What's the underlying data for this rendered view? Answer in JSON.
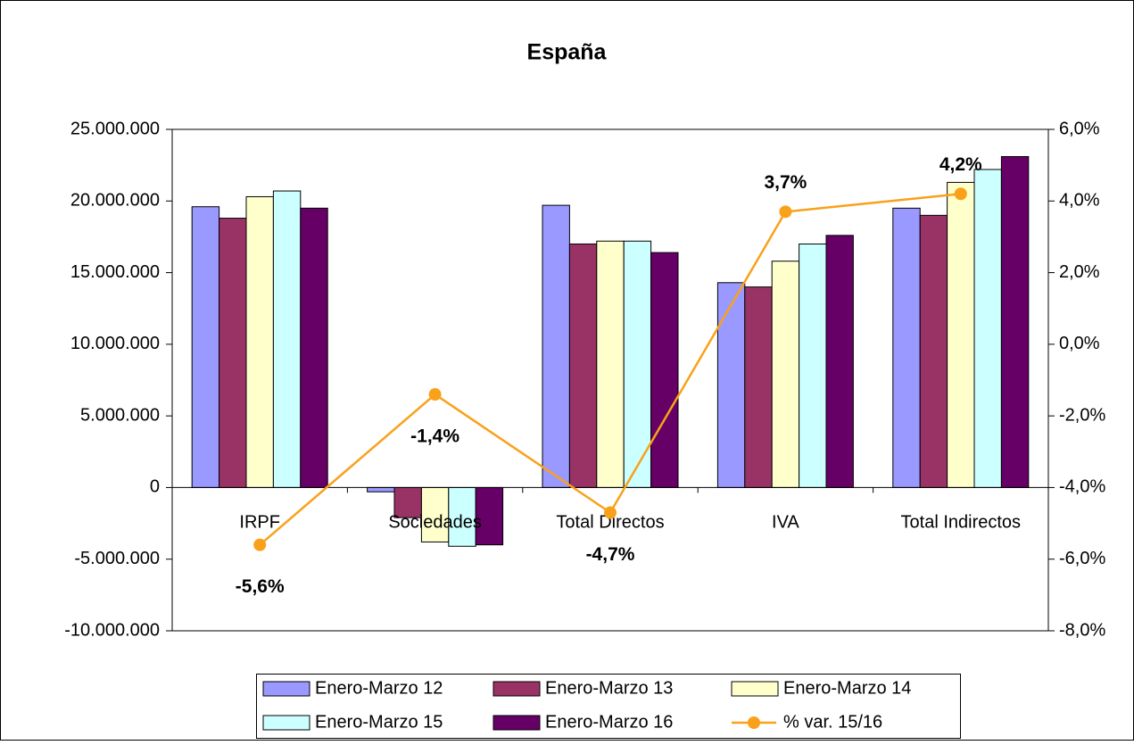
{
  "chart_data": {
    "type": "bar",
    "title": "España",
    "categories": [
      "IRPF",
      "Sociedades",
      "Total Directos",
      "IVA",
      "Total Indirectos"
    ],
    "series": [
      {
        "name": "Enero-Marzo 12",
        "color": "#9999ff",
        "values": [
          19600000,
          -300000,
          19700000,
          14300000,
          19500000
        ]
      },
      {
        "name": "Enero-Marzo 13",
        "color": "#993366",
        "values": [
          18800000,
          -2100000,
          17000000,
          14000000,
          19000000
        ]
      },
      {
        "name": "Enero-Marzo 14",
        "color": "#ffffcc",
        "values": [
          20300000,
          -3800000,
          17200000,
          15800000,
          21300000
        ]
      },
      {
        "name": "Enero-Marzo 15",
        "color": "#ccffff",
        "values": [
          20700000,
          -4100000,
          17200000,
          17000000,
          22200000
        ]
      },
      {
        "name": "Enero-Marzo 16",
        "color": "#660066",
        "values": [
          19500000,
          -4000000,
          16400000,
          17600000,
          23100000
        ]
      },
      {
        "name": "% var. 15/16",
        "color": "#f9a11b",
        "type": "line",
        "axis": "y2",
        "values": [
          -5.6,
          -1.4,
          -4.7,
          3.7,
          4.2
        ],
        "value_labels": [
          "-5,6%",
          "-1,4%",
          "-4,7%",
          "3,7%",
          "4,2%"
        ]
      }
    ],
    "ylim": [
      -10000000,
      25000000
    ],
    "yticks": [
      {
        "value": -10000000,
        "label": "-10.000.000"
      },
      {
        "value": -5000000,
        "label": "-5.000.000"
      },
      0,
      {
        "value": 5000000,
        "label": "5.000.000"
      },
      {
        "value": 10000000,
        "label": "10.000.000"
      },
      {
        "value": 15000000,
        "label": "15.000.000"
      },
      {
        "value": 20000000,
        "label": "20.000.000"
      },
      {
        "value": 25000000,
        "label": "25.000.000"
      }
    ],
    "y2lim": [
      -8,
      6
    ],
    "y2ticks": [
      {
        "value": -8,
        "label": "-8,0%"
      },
      {
        "value": -6,
        "label": "-6,0%"
      },
      {
        "value": -4,
        "label": "-4,0%"
      },
      {
        "value": -2,
        "label": "-2,0%"
      },
      {
        "value": 0,
        "label": "0,0%"
      },
      {
        "value": 2,
        "label": "2,0%"
      },
      {
        "value": 4,
        "label": "4,0%"
      },
      {
        "value": 6,
        "label": "6,0%"
      }
    ],
    "legend": "bottom"
  }
}
